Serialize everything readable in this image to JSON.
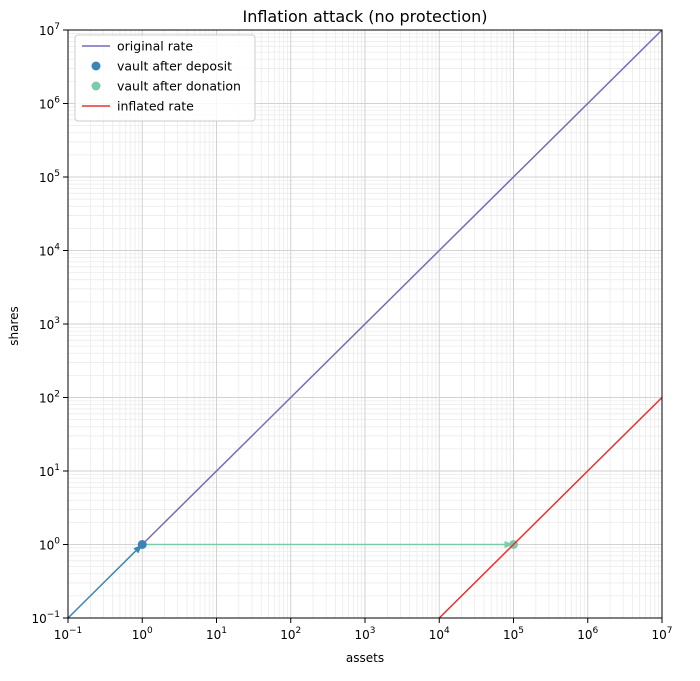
{
  "chart_data": {
    "type": "line",
    "title": "Inflation attack (no protection)",
    "xlabel": "assets",
    "ylabel": "shares",
    "xscale": "log",
    "yscale": "log",
    "xlim": [
      0.1,
      10000000
    ],
    "ylim": [
      0.1,
      10000000
    ],
    "grid": true,
    "legend_position": "top-left",
    "x_ticks": [
      {
        "value": 0.1,
        "base": "10",
        "exp": "−1"
      },
      {
        "value": 1,
        "base": "10",
        "exp": "0"
      },
      {
        "value": 10,
        "base": "10",
        "exp": "1"
      },
      {
        "value": 100,
        "base": "10",
        "exp": "2"
      },
      {
        "value": 1000,
        "base": "10",
        "exp": "3"
      },
      {
        "value": 10000,
        "base": "10",
        "exp": "4"
      },
      {
        "value": 100000,
        "base": "10",
        "exp": "5"
      },
      {
        "value": 1000000,
        "base": "10",
        "exp": "6"
      },
      {
        "value": 10000000,
        "base": "10",
        "exp": "7"
      }
    ],
    "y_ticks": [
      {
        "value": 0.1,
        "base": "10",
        "exp": "−1"
      },
      {
        "value": 1,
        "base": "10",
        "exp": "0"
      },
      {
        "value": 10,
        "base": "10",
        "exp": "1"
      },
      {
        "value": 100,
        "base": "10",
        "exp": "2"
      },
      {
        "value": 1000,
        "base": "10",
        "exp": "3"
      },
      {
        "value": 10000,
        "base": "10",
        "exp": "4"
      },
      {
        "value": 100000,
        "base": "10",
        "exp": "5"
      },
      {
        "value": 1000000,
        "base": "10",
        "exp": "6"
      },
      {
        "value": 10000000,
        "base": "10",
        "exp": "7"
      }
    ],
    "series": [
      {
        "name": "original rate",
        "kind": "line",
        "color": "#7b6ab5",
        "points": [
          [
            0.1,
            0.1
          ],
          [
            10000000,
            10000000
          ]
        ],
        "clip_x_min": 1
      },
      {
        "name": "vault after deposit",
        "kind": "scatter",
        "color": "#3a85b5",
        "points": [
          [
            1,
            1
          ]
        ]
      },
      {
        "name": "vault after donation",
        "kind": "scatter",
        "color": "#7ccba8",
        "points": [
          [
            100000,
            1
          ]
        ]
      },
      {
        "name": "inflated rate",
        "kind": "line",
        "color": "#e8322f",
        "points": [
          [
            10000,
            0.1
          ],
          [
            10000000,
            100
          ]
        ]
      }
    ],
    "arrows": [
      {
        "from": [
          0.1,
          0.1
        ],
        "to": [
          1,
          1
        ],
        "color": "#3a85b5"
      },
      {
        "from": [
          1,
          1
        ],
        "to": [
          100000,
          1
        ],
        "color": "#7ccba8"
      }
    ]
  }
}
